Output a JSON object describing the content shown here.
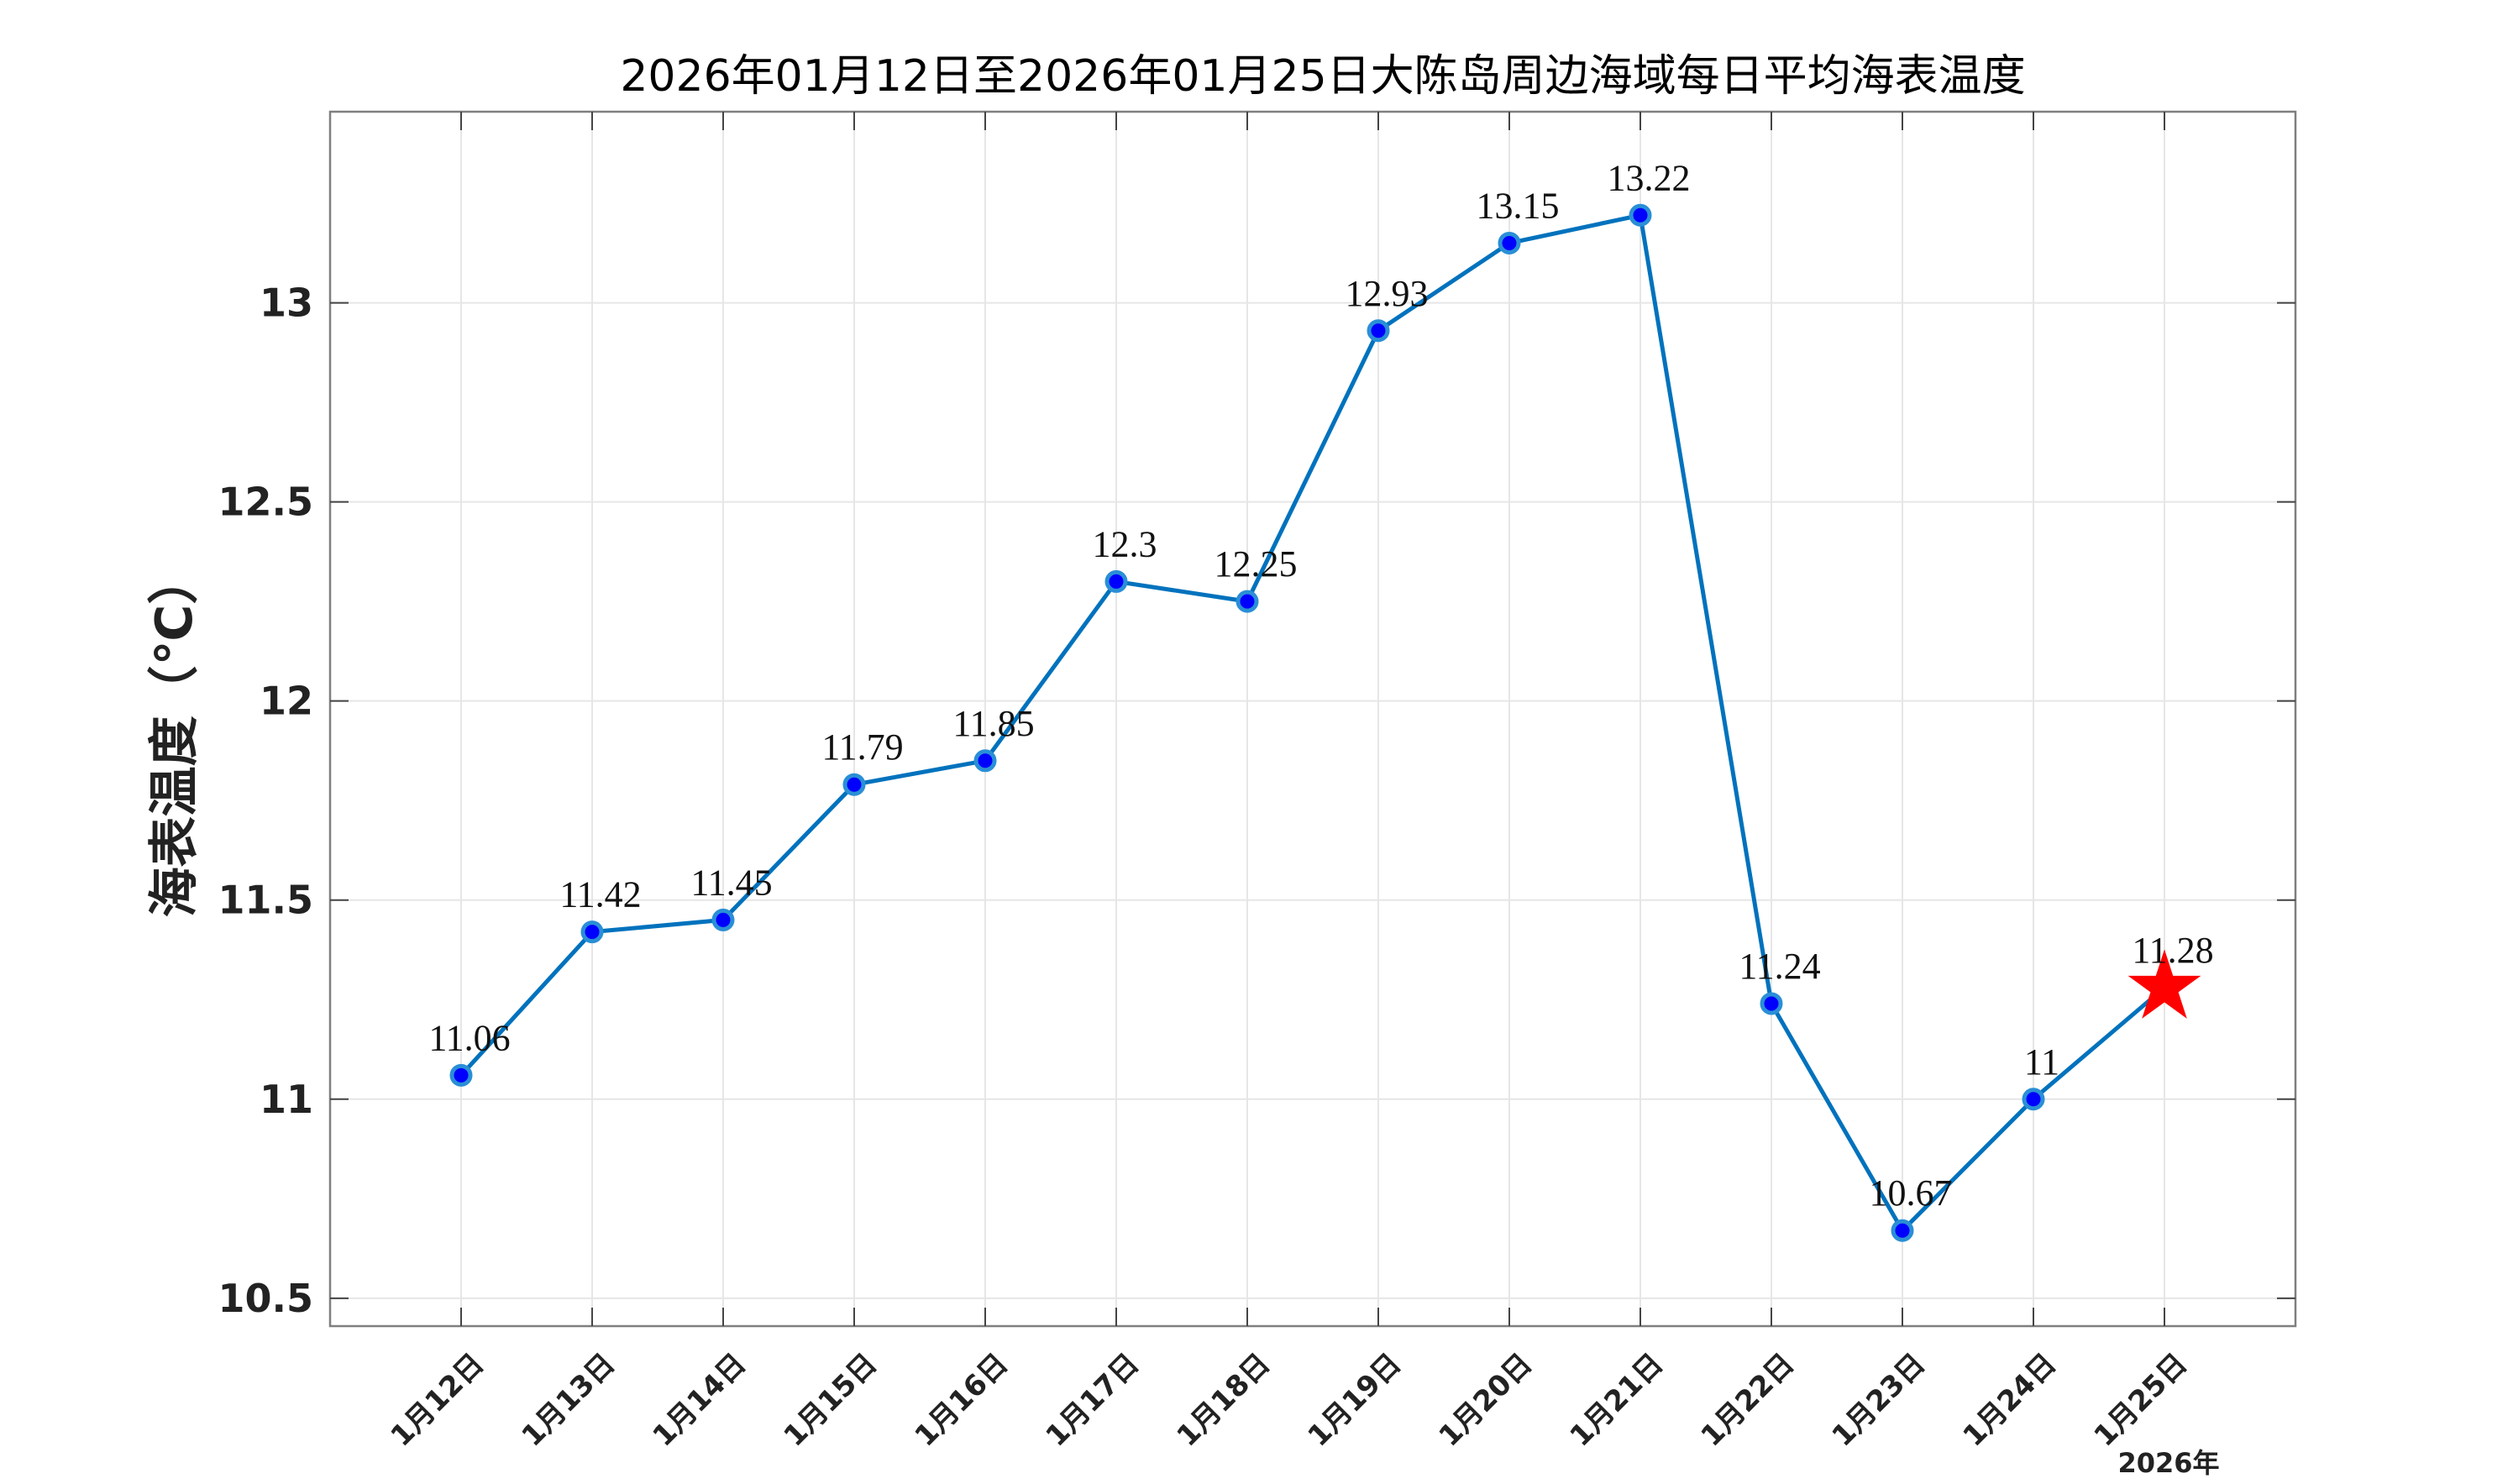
{
  "chart_data": {
    "type": "line",
    "title": "2026年01月12日至2026年01月25日大陈岛周边海域每日平均海表温度",
    "ylabel": "海表温度（℃）",
    "xlabel": "",
    "year_label": "2026年",
    "categories": [
      "1月12日",
      "1月13日",
      "1月14日",
      "1月15日",
      "1月16日",
      "1月17日",
      "1月18日",
      "1月19日",
      "1月20日",
      "1月21日",
      "1月22日",
      "1月23日",
      "1月24日",
      "1月25日"
    ],
    "series": [
      {
        "values": [
          11.06,
          11.42,
          11.45,
          11.79,
          11.85,
          12.3,
          12.25,
          12.93,
          13.15,
          13.22,
          11.24,
          10.67,
          11,
          11.28
        ]
      }
    ],
    "data_labels": [
      "11.06",
      "11.42",
      "11.45",
      "11.79",
      "11.85",
      "12.3",
      "12.25",
      "12.93",
      "13.15",
      "13.22",
      "11.24",
      "10.67",
      "11",
      "11.28"
    ],
    "ylim": [
      10.43,
      13.48
    ],
    "yticks": [
      10.5,
      11,
      11.5,
      12,
      12.5,
      13
    ],
    "ytick_labels": [
      "10.5",
      "11",
      "11.5",
      "12",
      "12.5",
      "13"
    ],
    "grid": true,
    "last_point_marker": "star",
    "colors": {
      "line": "#0072BD",
      "marker_fill": "#0000FF",
      "marker_edge": "#2A8FD6",
      "star": "#FF0000",
      "grid": "#E6E6E6",
      "axes": "#7F7F7F"
    }
  }
}
